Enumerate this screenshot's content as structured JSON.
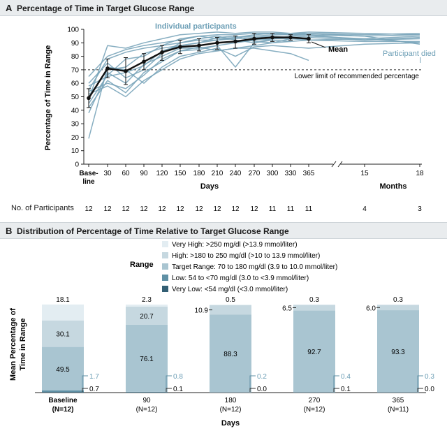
{
  "panel_a": {
    "letter": "A",
    "title": "Percentage of Time in Target Glucose Range",
    "ylabel": "Percentage of Time in Range",
    "xlabel_days": "Days",
    "xlabel_months": "Months",
    "annotations": {
      "individual": "Individual participants",
      "mean": "Mean",
      "died": "Participant died",
      "lower_limit": "Lower limit of recommended percentage"
    },
    "participants_label": "No. of Participants"
  },
  "panel_b": {
    "letter": "B",
    "title": "Distribution of Percentage of Time Relative to Target Glucose Range",
    "legend_title": "Range",
    "ylabel_1": "Mean Percentage of",
    "ylabel_2": "Time in Range",
    "xlabel": "Days"
  },
  "colors": {
    "very_high": "#e3edf2",
    "high": "#c6d8e0",
    "target": "#a9c5d1",
    "low": "#5f90a5",
    "very_low": "#335f74",
    "individual_line": "#7aa5ba",
    "mean_line": "#111111",
    "accent_text": "#6d9fb6"
  },
  "chart_data": [
    {
      "type": "line",
      "title": "Percentage of Time in Target Glucose Range",
      "ylabel": "Percentage of Time in Range",
      "ylim": [
        0,
        100
      ],
      "yticks": [
        0,
        10,
        20,
        30,
        40,
        50,
        60,
        70,
        80,
        90,
        100
      ],
      "x_tick_labels": [
        "Base-\nline",
        "30",
        "60",
        "90",
        "120",
        "150",
        "180",
        "210",
        "240",
        "270",
        "300",
        "330",
        "365",
        "15",
        "18"
      ],
      "x_axis_break": true,
      "grid": false,
      "reference_line": {
        "y": 70,
        "label": "Lower limit of recommended percentage",
        "style": "dashed"
      },
      "mean": {
        "name": "Mean",
        "x": [
          "Baseline",
          "30",
          "60",
          "90",
          "120",
          "150",
          "180",
          "210",
          "240",
          "270",
          "300",
          "330",
          "365"
        ],
        "values": [
          49,
          71,
          69,
          76,
          83,
          87,
          88,
          90,
          91,
          93,
          94,
          94,
          93
        ],
        "ci_low": [
          42,
          64,
          59,
          70,
          77,
          82,
          84,
          85,
          86,
          89,
          91,
          92,
          90
        ],
        "ci_high": [
          56,
          78,
          79,
          82,
          88,
          92,
          93,
          94,
          95,
          97,
          97,
          96,
          96
        ]
      },
      "individual_series": [
        {
          "x": [
            "Baseline",
            "30",
            "60",
            "90",
            "120",
            "150",
            "180",
            "210",
            "240",
            "270",
            "300",
            "330",
            "365",
            "15",
            "18"
          ],
          "values": [
            65,
            80,
            85,
            88,
            90,
            92,
            95,
            96,
            96,
            97,
            97,
            96,
            97,
            96,
            97
          ]
        },
        {
          "x": [
            "Baseline",
            "30",
            "60",
            "90",
            "120",
            "150",
            "180",
            "210",
            "240",
            "270",
            "300",
            "330",
            "365",
            "15",
            "18"
          ],
          "values": [
            55,
            78,
            83,
            86,
            88,
            90,
            92,
            92,
            93,
            94,
            95,
            94,
            95,
            93,
            95
          ]
        },
        {
          "x": [
            "Baseline",
            "30",
            "60",
            "90",
            "120",
            "150",
            "180",
            "210",
            "240",
            "270",
            "300",
            "330",
            "365",
            "15",
            "18"
          ],
          "values": [
            50,
            70,
            72,
            82,
            86,
            88,
            90,
            92,
            94,
            96,
            97,
            97,
            97,
            95,
            89
          ]
        },
        {
          "x": [
            "Baseline",
            "30",
            "60",
            "90",
            "120",
            "150",
            "180",
            "210",
            "240",
            "270",
            "300",
            "330",
            "365",
            "15",
            "18"
          ],
          "values": [
            60,
            75,
            64,
            70,
            82,
            90,
            93,
            95,
            92,
            90,
            93,
            95,
            96,
            92,
            94
          ]
        },
        {
          "x": [
            "Baseline",
            "30",
            "60",
            "90",
            "120",
            "150",
            "180",
            "210",
            "240",
            "270",
            "300",
            "330",
            "365",
            "15",
            "18"
          ],
          "values": [
            48,
            88,
            86,
            90,
            93,
            96,
            97,
            98,
            97,
            98,
            98,
            97,
            98,
            97,
            96
          ]
        },
        {
          "x": [
            "Baseline",
            "30",
            "60",
            "90",
            "120",
            "150",
            "180",
            "210",
            "240",
            "270",
            "300",
            "330",
            "365",
            "15",
            "18"
          ],
          "values": [
            42,
            62,
            53,
            68,
            76,
            84,
            85,
            88,
            90,
            92,
            93,
            93,
            92,
            91,
            91
          ]
        },
        {
          "x": [
            "Baseline",
            "30",
            "60",
            "90",
            "120",
            "150",
            "180",
            "210",
            "240",
            "270",
            "300",
            "330",
            "365",
            "15",
            "18"
          ],
          "values": [
            19,
            72,
            70,
            60,
            72,
            80,
            83,
            86,
            80,
            87,
            88,
            87,
            86,
            89,
            90
          ]
        },
        {
          "x": [
            "Baseline",
            "30",
            "60",
            "90",
            "120",
            "150",
            "180",
            "210",
            "240",
            "270",
            "300",
            "330",
            "365",
            "15",
            "18"
          ],
          "values": [
            58,
            65,
            68,
            73,
            84,
            88,
            90,
            94,
            95,
            91,
            90,
            93,
            94,
            92,
            93
          ]
        },
        {
          "x": [
            "Baseline",
            "30",
            "60",
            "90",
            "120",
            "150",
            "180",
            "210",
            "240",
            "270",
            "300",
            "330",
            "365",
            "15",
            "18"
          ],
          "values": [
            52,
            58,
            50,
            62,
            70,
            78,
            82,
            84,
            86,
            88,
            90,
            91,
            92,
            93,
            90
          ]
        },
        {
          "x": [
            "Baseline",
            "30",
            "60",
            "90",
            "120",
            "150",
            "180",
            "210",
            "240",
            "270",
            "300",
            "330",
            "365",
            "15",
            "18"
          ],
          "values": [
            45,
            66,
            78,
            80,
            88,
            93,
            95,
            93,
            94,
            95,
            96,
            96,
            96,
            95,
            96
          ]
        },
        {
          "x": [
            "Baseline",
            "30",
            "60",
            "90",
            "120",
            "150",
            "180",
            "210",
            "240",
            "270",
            "300",
            "330"
          ],
          "values": [
            38,
            68,
            60,
            74,
            80,
            86,
            86,
            88,
            72,
            90,
            92,
            91
          ]
        },
        {
          "x": [
            "Baseline",
            "30",
            "60",
            "90",
            "120",
            "150",
            "180",
            "210",
            "240",
            "270",
            "300",
            "330",
            "365"
          ],
          "values": [
            54,
            60,
            56,
            66,
            78,
            84,
            87,
            84,
            86,
            86,
            84,
            82,
            77
          ]
        }
      ],
      "participants": {
        "label": "No. of Participants",
        "counts": [
          "12",
          "12",
          "12",
          "12",
          "12",
          "12",
          "12",
          "12",
          "12",
          "12",
          "11",
          "11",
          "11",
          "4",
          "3"
        ]
      }
    },
    {
      "type": "bar",
      "stacked": true,
      "title": "Distribution of Percentage of Time Relative to Target Glucose Range",
      "ylabel": "Mean Percentage of Time in Range",
      "xlabel": "Days",
      "categories": [
        "Baseline",
        "90",
        "180",
        "270",
        "365"
      ],
      "category_n": [
        "(N=12)",
        "(N=12)",
        "(N=12)",
        "(N=12)",
        "(N=11)"
      ],
      "legend_title": "Range",
      "legend_position": "top-center",
      "series": [
        {
          "name": "Very Low: <54 mg/dl (<3.0 mmol/liter)",
          "values": [
            0.7,
            0.1,
            0.0,
            0.1,
            0.0
          ],
          "labels": [
            "0.7",
            "0.1",
            "0.0",
            "0.1",
            "0.0"
          ]
        },
        {
          "name": "Low: 54 to <70 mg/dl (3.0 to <3.9 mmol/liter)",
          "values": [
            1.7,
            0.8,
            0.2,
            0.4,
            0.3
          ],
          "labels": [
            "1.7",
            "0.8",
            "0.2",
            "0.4",
            "0.3"
          ]
        },
        {
          "name": "Target Range: 70 to 180 mg/dl (3.9 to 10.0 mmol/liter)",
          "values": [
            49.5,
            76.1,
            88.3,
            92.7,
            93.3
          ],
          "labels": [
            "49.5",
            "76.1",
            "88.3",
            "92.7",
            "93.3"
          ]
        },
        {
          "name": "High: >180 to 250 mg/dl (>10 to 13.9 mmol/liter)",
          "values": [
            30.1,
            20.7,
            10.9,
            6.5,
            6.0
          ],
          "labels": [
            "30.1",
            "20.7",
            "10.9",
            "6.5",
            "6.0"
          ]
        },
        {
          "name": "Very High: >250 mg/dl (>13.9 mmol/liter)",
          "values": [
            18.1,
            2.3,
            0.5,
            0.3,
            0.3
          ],
          "labels": [
            "18.1",
            "2.3",
            "0.5",
            "0.3",
            "0.3"
          ]
        }
      ]
    }
  ]
}
